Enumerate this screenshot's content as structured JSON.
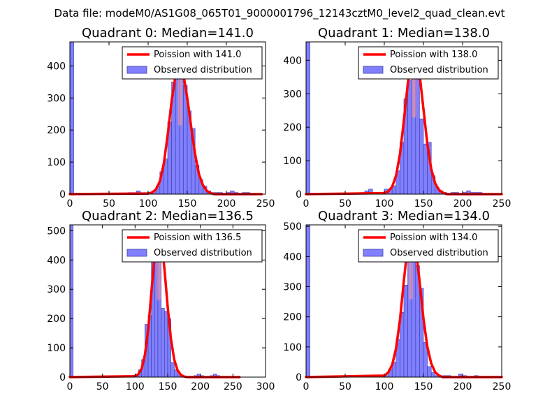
{
  "figure": {
    "suptitle": "Data file: modeM0/AS1G08_065T01_9000001796_12143cztM0_level2_quad_clean.evt"
  },
  "colors": {
    "bar_fill": "#8080ff",
    "bar_edge": "#3a3aa8",
    "curve": "#ff0000",
    "curve_peak_highlight": "#ff9a9a",
    "axes": "#000000"
  },
  "chart_data": [
    {
      "type": "bar+line",
      "title": "Quadrant 0: Median=141.0",
      "median": 141.0,
      "xlim": [
        0,
        250
      ],
      "ylim": [
        0,
        475
      ],
      "xticks": [
        0,
        50,
        100,
        150,
        200,
        250
      ],
      "yticks": [
        0,
        100,
        200,
        300,
        400
      ],
      "bin_width": 5,
      "legend": [
        {
          "kind": "line",
          "label": "Poission with 141.0"
        },
        {
          "kind": "bar",
          "label": "Observed distribution"
        }
      ],
      "bars": [
        {
          "x": 0,
          "h": 475
        },
        {
          "x": 75,
          "h": 5
        },
        {
          "x": 80,
          "h": 5
        },
        {
          "x": 85,
          "h": 10
        },
        {
          "x": 90,
          "h": 5
        },
        {
          "x": 95,
          "h": 5
        },
        {
          "x": 100,
          "h": 5
        },
        {
          "x": 105,
          "h": 10
        },
        {
          "x": 110,
          "h": 25
        },
        {
          "x": 115,
          "h": 70
        },
        {
          "x": 120,
          "h": 110
        },
        {
          "x": 125,
          "h": 225
        },
        {
          "x": 130,
          "h": 350
        },
        {
          "x": 135,
          "h": 375
        },
        {
          "x": 140,
          "h": 400
        },
        {
          "x": 145,
          "h": 340
        },
        {
          "x": 150,
          "h": 260
        },
        {
          "x": 155,
          "h": 205
        },
        {
          "x": 160,
          "h": 90
        },
        {
          "x": 165,
          "h": 45
        },
        {
          "x": 170,
          "h": 25
        },
        {
          "x": 175,
          "h": 10
        },
        {
          "x": 180,
          "h": 5
        },
        {
          "x": 185,
          "h": 5
        },
        {
          "x": 190,
          "h": 5
        },
        {
          "x": 200,
          "h": 5
        },
        {
          "x": 205,
          "h": 10
        },
        {
          "x": 210,
          "h": 5
        },
        {
          "x": 220,
          "h": 5
        },
        {
          "x": 225,
          "h": 5
        }
      ],
      "curve": [
        [
          0,
          0
        ],
        [
          100,
          2
        ],
        [
          105,
          5
        ],
        [
          110,
          15
        ],
        [
          115,
          40
        ],
        [
          120,
          95
        ],
        [
          125,
          185
        ],
        [
          130,
          290
        ],
        [
          135,
          370
        ],
        [
          140,
          400
        ],
        [
          145,
          375
        ],
        [
          150,
          300
        ],
        [
          155,
          210
        ],
        [
          160,
          125
        ],
        [
          165,
          62
        ],
        [
          170,
          28
        ],
        [
          175,
          10
        ],
        [
          180,
          3
        ],
        [
          185,
          0
        ],
        [
          245,
          0
        ]
      ]
    },
    {
      "type": "bar+line",
      "title": "Quadrant 1: Median=138.0",
      "median": 138.0,
      "xlim": [
        0,
        250
      ],
      "ylim": [
        0,
        455
      ],
      "xticks": [
        0,
        50,
        100,
        150,
        200,
        250
      ],
      "yticks": [
        0,
        100,
        200,
        300,
        400
      ],
      "bin_width": 5,
      "legend": [
        {
          "kind": "line",
          "label": "Poission with 138.0"
        },
        {
          "kind": "bar",
          "label": "Observed distribution"
        }
      ],
      "bars": [
        {
          "x": 0,
          "h": 455
        },
        {
          "x": 75,
          "h": 10
        },
        {
          "x": 80,
          "h": 15
        },
        {
          "x": 85,
          "h": 5
        },
        {
          "x": 90,
          "h": 5
        },
        {
          "x": 95,
          "h": 5
        },
        {
          "x": 100,
          "h": 15
        },
        {
          "x": 105,
          "h": 15
        },
        {
          "x": 110,
          "h": 25
        },
        {
          "x": 115,
          "h": 70
        },
        {
          "x": 120,
          "h": 155
        },
        {
          "x": 125,
          "h": 285
        },
        {
          "x": 130,
          "h": 340
        },
        {
          "x": 135,
          "h": 415
        },
        {
          "x": 140,
          "h": 385
        },
        {
          "x": 145,
          "h": 225
        },
        {
          "x": 150,
          "h": 150
        },
        {
          "x": 155,
          "h": 155
        },
        {
          "x": 160,
          "h": 55
        },
        {
          "x": 165,
          "h": 20
        },
        {
          "x": 170,
          "h": 10
        },
        {
          "x": 175,
          "h": 5
        },
        {
          "x": 185,
          "h": 5
        },
        {
          "x": 190,
          "h": 5
        },
        {
          "x": 200,
          "h": 5
        },
        {
          "x": 205,
          "h": 10
        },
        {
          "x": 210,
          "h": 5
        },
        {
          "x": 215,
          "h": 5
        },
        {
          "x": 220,
          "h": 5
        }
      ],
      "curve": [
        [
          0,
          0
        ],
        [
          100,
          3
        ],
        [
          105,
          8
        ],
        [
          110,
          22
        ],
        [
          115,
          55
        ],
        [
          120,
          120
        ],
        [
          125,
          220
        ],
        [
          130,
          330
        ],
        [
          135,
          410
        ],
        [
          140,
          425
        ],
        [
          145,
          360
        ],
        [
          150,
          255
        ],
        [
          155,
          150
        ],
        [
          160,
          75
        ],
        [
          165,
          32
        ],
        [
          170,
          12
        ],
        [
          175,
          4
        ],
        [
          180,
          0
        ],
        [
          250,
          0
        ]
      ]
    },
    {
      "type": "bar+line",
      "title": "Quadrant 2: Median=136.5",
      "median": 136.5,
      "xlim": [
        0,
        300
      ],
      "ylim": [
        0,
        520
      ],
      "xticks": [
        0,
        50,
        100,
        150,
        200,
        250,
        300
      ],
      "yticks": [
        0,
        100,
        200,
        300,
        400,
        500
      ],
      "bin_width": 5,
      "legend": [
        {
          "kind": "line",
          "label": "Poission with 136.5"
        },
        {
          "kind": "bar",
          "label": "Observed distribution"
        }
      ],
      "bars": [
        {
          "x": 0,
          "h": 520
        },
        {
          "x": 80,
          "h": 5
        },
        {
          "x": 90,
          "h": 5
        },
        {
          "x": 95,
          "h": 5
        },
        {
          "x": 100,
          "h": 10
        },
        {
          "x": 105,
          "h": 25
        },
        {
          "x": 110,
          "h": 60
        },
        {
          "x": 115,
          "h": 180
        },
        {
          "x": 120,
          "h": 210
        },
        {
          "x": 125,
          "h": 430
        },
        {
          "x": 130,
          "h": 440
        },
        {
          "x": 135,
          "h": 450
        },
        {
          "x": 140,
          "h": 235
        },
        {
          "x": 145,
          "h": 225
        },
        {
          "x": 150,
          "h": 200
        },
        {
          "x": 155,
          "h": 50
        },
        {
          "x": 160,
          "h": 25
        },
        {
          "x": 165,
          "h": 10
        },
        {
          "x": 170,
          "h": 5
        },
        {
          "x": 190,
          "h": 5
        },
        {
          "x": 195,
          "h": 10
        },
        {
          "x": 200,
          "h": 5
        },
        {
          "x": 215,
          "h": 5
        },
        {
          "x": 220,
          "h": 10
        },
        {
          "x": 225,
          "h": 5
        }
      ],
      "curve": [
        [
          0,
          0
        ],
        [
          100,
          3
        ],
        [
          105,
          10
        ],
        [
          110,
          28
        ],
        [
          115,
          75
        ],
        [
          120,
          160
        ],
        [
          125,
          290
        ],
        [
          130,
          420
        ],
        [
          135,
          490
        ],
        [
          140,
          470
        ],
        [
          145,
          370
        ],
        [
          150,
          240
        ],
        [
          155,
          130
        ],
        [
          160,
          60
        ],
        [
          165,
          24
        ],
        [
          170,
          8
        ],
        [
          175,
          2
        ],
        [
          180,
          0
        ],
        [
          260,
          0
        ]
      ]
    },
    {
      "type": "bar+line",
      "title": "Quadrant 3: Median=134.0",
      "median": 134.0,
      "xlim": [
        0,
        250
      ],
      "ylim": [
        0,
        505
      ],
      "xticks": [
        0,
        50,
        100,
        150,
        200,
        250
      ],
      "yticks": [
        0,
        100,
        200,
        300,
        400,
        500
      ],
      "bin_width": 5,
      "legend": [
        {
          "kind": "line",
          "label": "Poission with 134.0"
        },
        {
          "kind": "bar",
          "label": "Observed distribution"
        }
      ],
      "bars": [
        {
          "x": 0,
          "h": 505
        },
        {
          "x": 80,
          "h": 5
        },
        {
          "x": 90,
          "h": 5
        },
        {
          "x": 95,
          "h": 5
        },
        {
          "x": 100,
          "h": 5
        },
        {
          "x": 105,
          "h": 25
        },
        {
          "x": 110,
          "h": 50
        },
        {
          "x": 115,
          "h": 125
        },
        {
          "x": 120,
          "h": 215
        },
        {
          "x": 125,
          "h": 305
        },
        {
          "x": 130,
          "h": 430
        },
        {
          "x": 135,
          "h": 445
        },
        {
          "x": 140,
          "h": 370
        },
        {
          "x": 145,
          "h": 295
        },
        {
          "x": 150,
          "h": 115
        },
        {
          "x": 155,
          "h": 35
        },
        {
          "x": 160,
          "h": 15
        },
        {
          "x": 165,
          "h": 5
        },
        {
          "x": 175,
          "h": 5
        },
        {
          "x": 180,
          "h": 5
        },
        {
          "x": 195,
          "h": 10
        },
        {
          "x": 200,
          "h": 5
        },
        {
          "x": 215,
          "h": 5
        }
      ],
      "curve": [
        [
          0,
          0
        ],
        [
          100,
          5
        ],
        [
          105,
          15
        ],
        [
          110,
          40
        ],
        [
          115,
          95
        ],
        [
          120,
          190
        ],
        [
          125,
          320
        ],
        [
          130,
          440
        ],
        [
          135,
          480
        ],
        [
          140,
          430
        ],
        [
          145,
          320
        ],
        [
          150,
          195
        ],
        [
          155,
          100
        ],
        [
          160,
          45
        ],
        [
          165,
          16
        ],
        [
          170,
          5
        ],
        [
          175,
          0
        ],
        [
          250,
          0
        ]
      ]
    }
  ]
}
